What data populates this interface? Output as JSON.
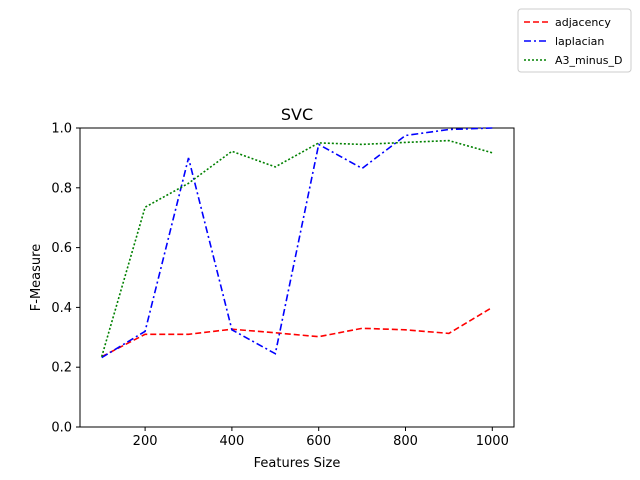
{
  "chart_data": {
    "type": "line",
    "title": "SVC",
    "xlabel": "Features Size",
    "ylabel": "F-Measure",
    "xlim": [
      50,
      1050
    ],
    "ylim": [
      0.0,
      1.0
    ],
    "xticks": [
      200,
      400,
      600,
      800,
      1000
    ],
    "yticks": [
      0.0,
      0.2,
      0.4,
      0.6,
      0.8,
      1.0
    ],
    "ytick_labels": [
      "0.0",
      "0.2",
      "0.4",
      "0.6",
      "0.8",
      "1.0"
    ],
    "grid": false,
    "legend_position": "top-right, outside plot",
    "x": [
      100,
      200,
      300,
      400,
      500,
      600,
      700,
      800,
      900,
      1000
    ],
    "series": [
      {
        "name": "adjacency",
        "color": "#ff0000",
        "dash": "dashed",
        "values": [
          0.235,
          0.31,
          0.31,
          0.327,
          0.315,
          0.302,
          0.33,
          0.325,
          0.313,
          0.4
        ]
      },
      {
        "name": "laplacian",
        "color": "#0000ff",
        "dash": "dashdot",
        "values": [
          0.232,
          0.32,
          0.9,
          0.325,
          0.245,
          0.945,
          0.865,
          0.975,
          0.995,
          1.0
        ]
      },
      {
        "name": "A3_minus_D",
        "color": "#008000",
        "dash": "dotted",
        "values": [
          0.235,
          0.735,
          0.815,
          0.922,
          0.87,
          0.95,
          0.945,
          0.952,
          0.958,
          0.917
        ]
      }
    ]
  }
}
